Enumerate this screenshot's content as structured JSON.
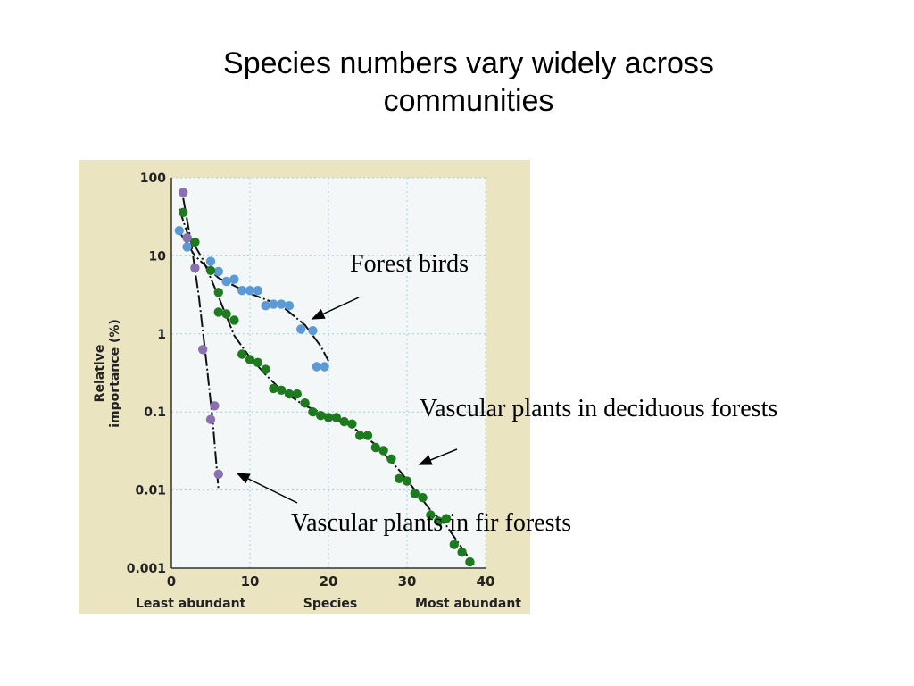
{
  "slide": {
    "title": "Species numbers vary widely across communities"
  },
  "annotations": {
    "forest_birds": "Forest birds",
    "deciduous": "Vascular plants in deciduous forests",
    "fir": "Vascular plants in fir forests"
  },
  "colors": {
    "panel": "#ebe4c0",
    "plot_bg": "#f4f7f8",
    "forest_birds": "#5b9bd5",
    "deciduous": "#1e7a1e",
    "fir": "#8a6fb3"
  },
  "chart_data": {
    "type": "scatter",
    "xlabel": "Species",
    "x_end_labels": {
      "left": "Least abundant",
      "right": "Most abundant"
    },
    "ylabel": [
      "Relative",
      "importance (%)"
    ],
    "yscale": "log",
    "xlim": [
      0,
      40
    ],
    "ylim": [
      0.001,
      100
    ],
    "xticks": [
      0,
      10,
      20,
      30,
      40
    ],
    "yticks": [
      {
        "value": 100,
        "label": "100"
      },
      {
        "value": 10,
        "label": "10"
      },
      {
        "value": 1,
        "label": "1"
      },
      {
        "value": 0.1,
        "label": "0.1"
      },
      {
        "value": 0.01,
        "label": "0.01"
      },
      {
        "value": 0.001,
        "label": "0.001"
      }
    ],
    "grid": true,
    "series": [
      {
        "key": "forest_birds",
        "points": [
          [
            1,
            21
          ],
          [
            2,
            13
          ],
          [
            5,
            8.5
          ],
          [
            6,
            6.3
          ],
          [
            7,
            4.7
          ],
          [
            8,
            5
          ],
          [
            9,
            3.6
          ],
          [
            10,
            3.6
          ],
          [
            11,
            3.6
          ],
          [
            12,
            2.3
          ],
          [
            13,
            2.4
          ],
          [
            14,
            2.4
          ],
          [
            15,
            2.3
          ],
          [
            16.5,
            1.15
          ],
          [
            18,
            1.1
          ],
          [
            18.5,
            0.38
          ],
          [
            19.5,
            0.38
          ]
        ],
        "trend": [
          [
            0.8,
            22
          ],
          [
            3,
            10
          ],
          [
            6,
            5.2
          ],
          [
            10,
            3.3
          ],
          [
            14,
            2.3
          ],
          [
            17,
            1.3
          ],
          [
            19,
            0.7
          ],
          [
            20,
            0.45
          ]
        ]
      },
      {
        "key": "deciduous",
        "points": [
          [
            1.5,
            36
          ],
          [
            2,
            17
          ],
          [
            3,
            15
          ],
          [
            5,
            6.5
          ],
          [
            6,
            3.4
          ],
          [
            6,
            1.9
          ],
          [
            7,
            1.8
          ],
          [
            8,
            1.5
          ],
          [
            9,
            0.55
          ],
          [
            10,
            0.47
          ],
          [
            11,
            0.43
          ],
          [
            12,
            0.35
          ],
          [
            13,
            0.2
          ],
          [
            14,
            0.19
          ],
          [
            15,
            0.17
          ],
          [
            16,
            0.17
          ],
          [
            17,
            0.13
          ],
          [
            18,
            0.1
          ],
          [
            19,
            0.09
          ],
          [
            20,
            0.085
          ],
          [
            21,
            0.085
          ],
          [
            22,
            0.075
          ],
          [
            23,
            0.07
          ],
          [
            24,
            0.05
          ],
          [
            25,
            0.05
          ],
          [
            26,
            0.035
          ],
          [
            27,
            0.032
          ],
          [
            28,
            0.025
          ],
          [
            29,
            0.014
          ],
          [
            30,
            0.013
          ],
          [
            31,
            0.009
          ],
          [
            32,
            0.008
          ],
          [
            33,
            0.0048
          ],
          [
            34,
            0.004
          ],
          [
            35,
            0.0043
          ],
          [
            36,
            0.002
          ],
          [
            37,
            0.0016
          ],
          [
            38,
            0.0012
          ]
        ],
        "trend": [
          [
            1,
            40
          ],
          [
            2,
            20
          ],
          [
            4,
            9
          ],
          [
            6,
            3
          ],
          [
            8,
            0.95
          ],
          [
            10,
            0.5
          ],
          [
            12,
            0.3
          ],
          [
            14,
            0.19
          ],
          [
            17,
            0.12
          ],
          [
            20,
            0.09
          ],
          [
            23,
            0.065
          ],
          [
            26,
            0.038
          ],
          [
            29,
            0.018
          ],
          [
            31,
            0.01
          ],
          [
            33,
            0.0055
          ],
          [
            35,
            0.0035
          ],
          [
            37,
            0.0018
          ],
          [
            38.5,
            0.0011
          ]
        ]
      },
      {
        "key": "fir",
        "points": [
          [
            1.5,
            65
          ],
          [
            2,
            17
          ],
          [
            3,
            7
          ],
          [
            4,
            0.63
          ],
          [
            5,
            0.08
          ],
          [
            5.5,
            0.12
          ],
          [
            6,
            0.016
          ]
        ],
        "trend": [
          [
            1.5,
            55
          ],
          [
            2.5,
            15
          ],
          [
            3.5,
            3
          ],
          [
            4.5,
            0.4
          ],
          [
            5.3,
            0.07
          ],
          [
            6,
            0.01
          ]
        ]
      }
    ]
  }
}
